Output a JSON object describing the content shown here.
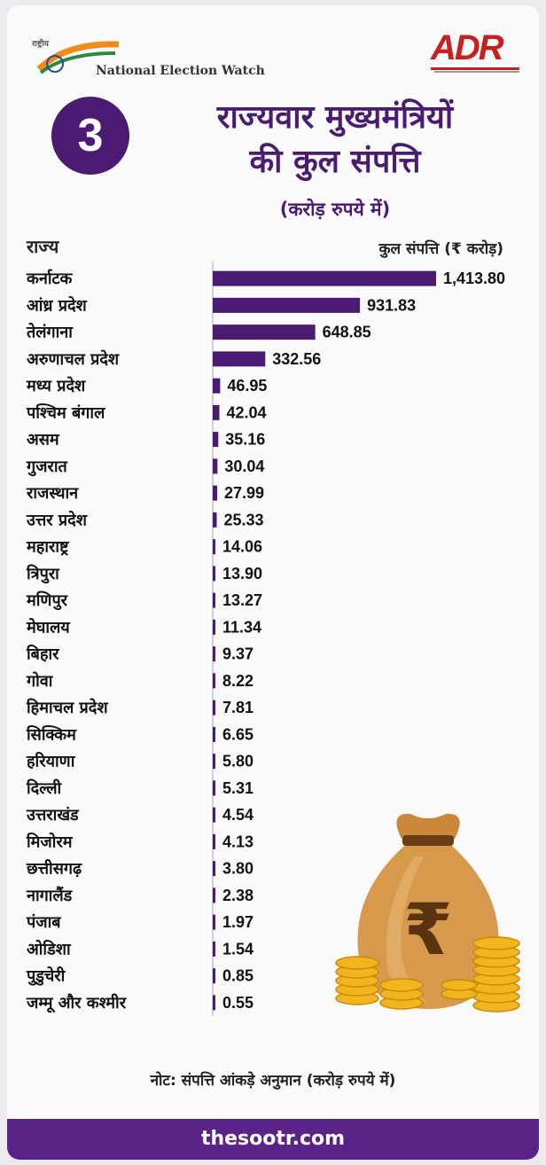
{
  "header": {
    "org_name": "National Election Watch",
    "org_small_text": "राष्ट्रीय",
    "adr_logo_text": "ADR",
    "badge_number": "3",
    "title_line1": "राज्यवार मुख्यमंत्रियों",
    "title_line2": "की कुल संपत्ति",
    "subtitle": "(करोड़ रुपये में)"
  },
  "columns": {
    "left": "राज्य",
    "right": "कुल संपत्ति (₹ करोड़)"
  },
  "chart_data": {
    "type": "bar",
    "orientation": "horizontal",
    "categories": [
      "कर्नाटक",
      "आंध्र प्रदेश",
      "तेलंगाना",
      "अरुणाचल प्रदेश",
      "मध्य प्रदेश",
      "पश्चिम बंगाल",
      "असम",
      "गुजरात",
      "राजस्थान",
      "उत्तर प्रदेश",
      "महाराष्ट्र",
      "त्रिपुरा",
      "मणिपुर",
      "मेघालय",
      "बिहार",
      "गोवा",
      "हिमाचल प्रदेश",
      "सिक्किम",
      "हरियाणा",
      "दिल्ली",
      "उत्तराखंड",
      "मिजोरम",
      "छत्तीसगढ़",
      "नागालैंड",
      "पंजाब",
      "ओडिशा",
      "पुडुचेरी",
      "जम्मू और कश्मीर"
    ],
    "values": [
      1413.8,
      931.83,
      648.85,
      332.56,
      46.95,
      42.04,
      35.16,
      30.04,
      27.99,
      25.33,
      14.06,
      13.9,
      13.27,
      11.34,
      9.37,
      8.22,
      7.81,
      6.65,
      5.8,
      5.31,
      4.54,
      4.13,
      3.8,
      2.38,
      1.97,
      1.54,
      0.85,
      0.55
    ],
    "value_labels": [
      "1,413.80",
      "931.83",
      "648.85",
      "332.56",
      "46.95",
      "42.04",
      "35.16",
      "30.04",
      "27.99",
      "25.33",
      "14.06",
      "13.90",
      "13.27",
      "11.34",
      "9.37",
      "8.22",
      "7.81",
      "6.65",
      "5.80",
      "5.31",
      "4.54",
      "4.13",
      "3.80",
      "2.38",
      "1.97",
      "1.54",
      "0.85",
      "0.55"
    ],
    "bar_color": "#4b1a72"
  },
  "illustration": {
    "icon": "money-bag-rupee-icon",
    "symbol": "₹"
  },
  "note": "नोट: संपत्ति आंकड़े अनुमान (करोड़ रुपये में)",
  "footer": "thesootr.com",
  "colors": {
    "primary": "#4b1a72",
    "footer": "#5b2387",
    "adr_red": "#c8201e"
  }
}
